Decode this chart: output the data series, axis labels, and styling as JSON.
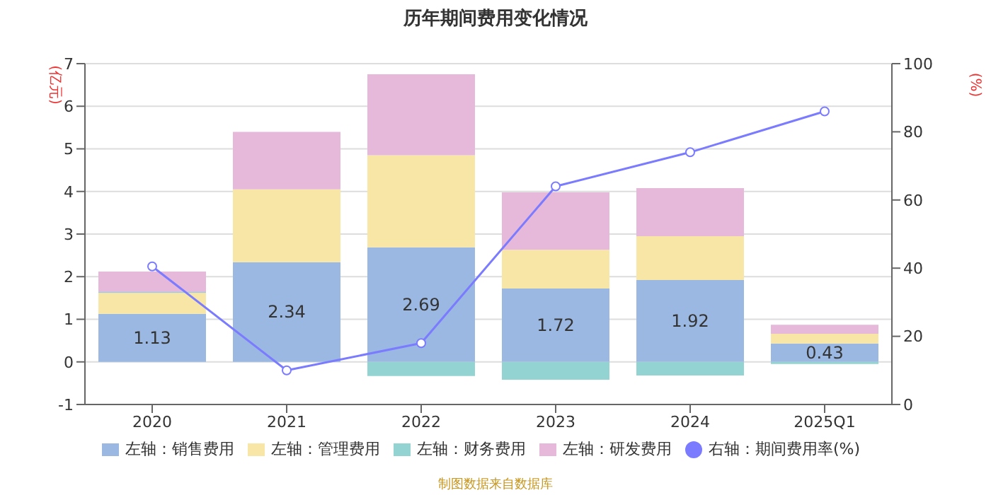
{
  "chart_data": {
    "type": "bar",
    "title": "历年期间费用变化情况",
    "ylabel": "(亿元)",
    "y2label": "(%)",
    "categories": [
      "2020",
      "2021",
      "2022",
      "2023",
      "2024",
      "2025Q1"
    ],
    "stacked": true,
    "series": [
      {
        "name": "左轴：销售费用",
        "color": "#9ab8e1",
        "values": [
          1.13,
          2.34,
          2.69,
          1.72,
          1.92,
          0.43
        ],
        "value_labels": [
          "1.13",
          "2.34",
          "2.69",
          "1.72",
          "1.92",
          "0.43"
        ]
      },
      {
        "name": "左轴：管理费用",
        "color": "#f7e6a6",
        "values": [
          0.49,
          1.71,
          2.16,
          0.91,
          1.03,
          0.23
        ]
      },
      {
        "name": "左轴：财务费用",
        "color": "#93d4d2",
        "values": [
          0.02,
          null,
          -0.33,
          -0.42,
          -0.32,
          -0.05
        ]
      },
      {
        "name": "左轴：研发费用",
        "color": "#e6b8d9",
        "values": [
          0.48,
          1.35,
          1.9,
          1.35,
          1.13,
          0.21
        ]
      },
      {
        "name": "右轴：期间费用率(%)",
        "type": "line",
        "axis": "y2",
        "color": "#7b7bff",
        "marker": "circle",
        "values": [
          40.5,
          10,
          18,
          64,
          74,
          86
        ]
      }
    ],
    "ylim": [
      -1,
      7
    ],
    "yticks": [
      -1,
      0,
      1,
      2,
      3,
      4,
      5,
      6,
      7
    ],
    "y2lim": [
      0,
      100
    ],
    "y2ticks": [
      0,
      20,
      40,
      60,
      80,
      100
    ],
    "grid": "y",
    "legend": "bottom",
    "annotations": [
      "制图数据来自数据库"
    ]
  }
}
